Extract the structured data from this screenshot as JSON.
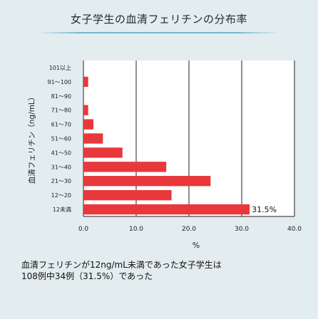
{
  "page": {
    "title": "女子学生の血清フェリチンの分布率",
    "caption_line1": "血清フェリチンが12ng/mL未満であった女子学生は",
    "caption_line2": "108例中34例（31.5%）であった"
  },
  "colors": {
    "bar": "#e8383b",
    "plot_bg": "#ffffff",
    "grid": "#222222",
    "page_bg": "#e3ecee",
    "title_rule": "#6fb9ce"
  },
  "chart_data": {
    "type": "bar",
    "orientation": "horizontal",
    "title": "女子学生の血清フェリチンの分布率",
    "xlabel": "%",
    "ylabel": "血清フェリチン（ng/mL）",
    "xlim": [
      0,
      40
    ],
    "xticks": [
      "0.0",
      "10.0",
      "20.0",
      "30.0",
      "40.0"
    ],
    "grid": true,
    "categories": [
      "101以上",
      "91〜100",
      "81〜90",
      "71〜80",
      "61〜70",
      "51〜60",
      "41〜50",
      "31〜40",
      "21〜30",
      "12〜20",
      "12未満"
    ],
    "values": [
      0,
      0.9,
      0,
      0.9,
      1.9,
      3.7,
      7.4,
      15.7,
      24.1,
      16.7,
      31.5
    ],
    "data_labels": [
      {
        "category": "12未満",
        "text": "31.5%"
      }
    ]
  }
}
